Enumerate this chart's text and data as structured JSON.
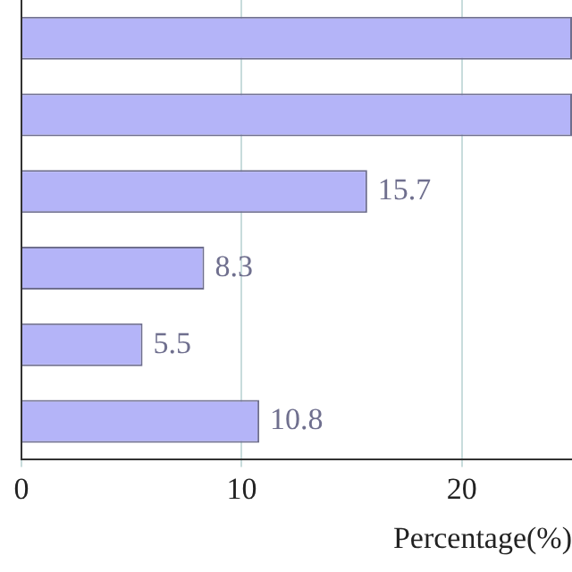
{
  "chart_data": {
    "type": "bar",
    "orientation": "horizontal",
    "categories": [
      null,
      null,
      null,
      null,
      null,
      null
    ],
    "values": [
      25,
      25,
      15.7,
      8.3,
      5.5,
      10.8
    ],
    "value_labels": [
      null,
      null,
      "15.7",
      "8.3",
      "5.5",
      "10.8"
    ],
    "color": "#b4b4f8",
    "xlim": [
      0,
      25
    ],
    "xticks": [
      0,
      10,
      20
    ],
    "xlabel": "Percentage(%)",
    "grid": "x",
    "tick_labels": "x"
  }
}
